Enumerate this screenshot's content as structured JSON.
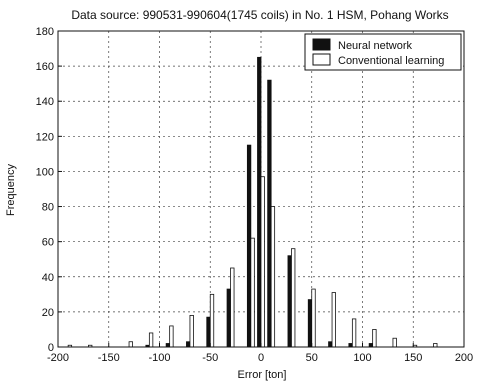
{
  "chart_data": {
    "type": "bar",
    "title": "Data source: 990531-990604(1745 coils) in No. 1 HSM, Pohang Works",
    "xlabel": "Error [ton]",
    "ylabel": "Frequency",
    "xlim": [
      -200,
      200
    ],
    "ylim": [
      0,
      180
    ],
    "xticks": [
      "-200",
      "-150",
      "-100",
      "-50",
      "0",
      "50",
      "100",
      "150",
      "200"
    ],
    "yticks": [
      "0",
      "20",
      "40",
      "60",
      "80",
      "100",
      "120",
      "140",
      "160",
      "180"
    ],
    "grid": true,
    "legend_position": "top-right",
    "x": [
      -190,
      -170,
      -150,
      -130,
      -110,
      -90,
      -70,
      -50,
      -30,
      -10,
      0,
      10,
      30,
      50,
      70,
      90,
      110,
      130,
      150,
      170
    ],
    "series": [
      {
        "name": "Neural network",
        "color": "#111111",
        "values": [
          0,
          0,
          0,
          0,
          1,
          2,
          3,
          17,
          33,
          115,
          165,
          152,
          52,
          27,
          3,
          2,
          2,
          0,
          0,
          0
        ]
      },
      {
        "name": "Conventional learning",
        "color": "#ffffff",
        "values": [
          1,
          1,
          0,
          3,
          8,
          12,
          18,
          30,
          45,
          62,
          97,
          80,
          56,
          33,
          31,
          16,
          10,
          5,
          1,
          2
        ]
      }
    ]
  }
}
